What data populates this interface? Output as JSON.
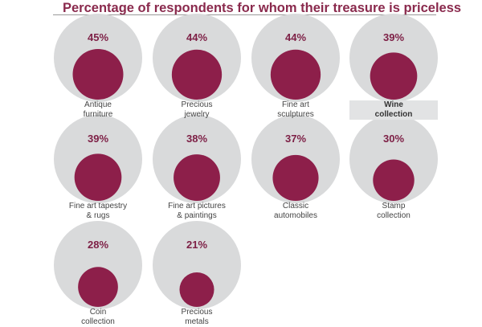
{
  "chart_data": {
    "type": "bubble",
    "title": "Percentage of respondents for whom their treasure is priceless",
    "unit": "%",
    "max_reference": 100,
    "colors": {
      "outer": "#d9dadb",
      "inner": "#8d1f4a",
      "value_text": "#7d1f45",
      "title": "#8a2a4d"
    },
    "categories": [
      "Antique\nfurniture",
      "Precious\njewelry",
      "Fine art\nsculptures",
      "Wine\ncollection",
      "Fine art tapestry\n& rugs",
      "Fine art pictures\n& paintings",
      "Classic\nautomobiles",
      "Stamp\ncollection",
      "Coin\ncollection",
      "Precious\nmetals"
    ],
    "values": [
      45,
      44,
      44,
      39,
      39,
      38,
      37,
      30,
      28,
      21
    ],
    "value_labels": [
      "45%",
      "44%",
      "44%",
      "39%",
      "39%",
      "38%",
      "37%",
      "30%",
      "28%",
      "21%"
    ],
    "highlighted_category": "Wine\ncollection"
  }
}
